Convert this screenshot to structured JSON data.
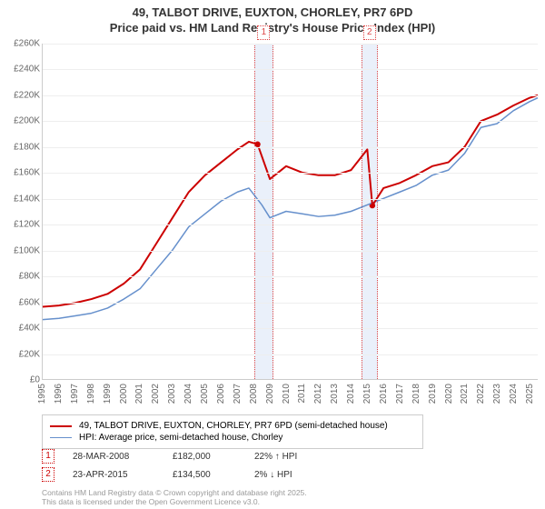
{
  "title_line1": "49, TALBOT DRIVE, EUXTON, CHORLEY, PR7 6PD",
  "title_line2": "Price paid vs. HM Land Registry's House Price Index (HPI)",
  "chart": {
    "type": "line",
    "x_domain": [
      1995,
      2025.5
    ],
    "y_domain": [
      0,
      260000
    ],
    "y_ticks": [
      0,
      20000,
      40000,
      60000,
      80000,
      100000,
      120000,
      140000,
      160000,
      180000,
      200000,
      220000,
      240000,
      260000
    ],
    "y_tick_labels": [
      "£0",
      "£20K",
      "£40K",
      "£60K",
      "£80K",
      "£100K",
      "£120K",
      "£140K",
      "£160K",
      "£180K",
      "£200K",
      "£220K",
      "£240K",
      "£260K"
    ],
    "x_ticks": [
      1995,
      1996,
      1997,
      1998,
      1999,
      2000,
      2001,
      2002,
      2003,
      2004,
      2005,
      2006,
      2007,
      2008,
      2009,
      2010,
      2011,
      2012,
      2013,
      2014,
      2015,
      2016,
      2017,
      2018,
      2019,
      2020,
      2021,
      2022,
      2023,
      2024,
      2025
    ],
    "background_color": "#ffffff",
    "grid_color": "#eeeeee",
    "axis_color": "#cccccc",
    "series_a": {
      "label": "49, TALBOT DRIVE, EUXTON, CHORLEY, PR7 6PD (semi-detached house)",
      "color": "#cc0000",
      "line_width": 2,
      "x": [
        1995,
        1996,
        1997,
        1998,
        1999,
        2000,
        2001,
        2002,
        2003,
        2004,
        2005,
        2006,
        2007,
        2007.7,
        2008.24,
        2009,
        2009.5,
        2010,
        2011,
        2012,
        2013,
        2014,
        2015,
        2015.31,
        2016,
        2017,
        2018,
        2019,
        2020,
        2021,
        2022,
        2023,
        2024,
        2025,
        2025.5
      ],
      "y": [
        56000,
        57000,
        59000,
        62000,
        66000,
        74000,
        85000,
        105000,
        125000,
        145000,
        158000,
        168000,
        178000,
        184000,
        182000,
        155000,
        160000,
        165000,
        160000,
        158000,
        158000,
        162000,
        178000,
        134500,
        148000,
        152000,
        158000,
        165000,
        168000,
        180000,
        200000,
        205000,
        212000,
        218000,
        220000
      ]
    },
    "series_b": {
      "label": "HPI: Average price, semi-detached house, Chorley",
      "color": "#6690cc",
      "line_width": 1.5,
      "x": [
        1995,
        1996,
        1997,
        1998,
        1999,
        2000,
        2001,
        2002,
        2003,
        2004,
        2005,
        2006,
        2007,
        2007.7,
        2008.5,
        2009,
        2010,
        2011,
        2012,
        2013,
        2014,
        2015,
        2016,
        2017,
        2018,
        2019,
        2020,
        2021,
        2022,
        2023,
        2024,
        2025,
        2025.5
      ],
      "y": [
        46000,
        47000,
        49000,
        51000,
        55000,
        62000,
        70000,
        85000,
        100000,
        118000,
        128000,
        138000,
        145000,
        148000,
        135000,
        125000,
        130000,
        128000,
        126000,
        127000,
        130000,
        135000,
        140000,
        145000,
        150000,
        158000,
        162000,
        175000,
        195000,
        198000,
        208000,
        215000,
        218000
      ]
    },
    "markers": [
      {
        "index": 1,
        "x": 2008.24,
        "y": 182000,
        "band_start": 2008.0,
        "band_end": 2009.2,
        "band_color": "#eaf0fa",
        "line_color": "#dd4444",
        "point_color": "#cc0000"
      },
      {
        "index": 2,
        "x": 2015.31,
        "y": 134500,
        "band_start": 2014.6,
        "band_end": 2015.6,
        "band_color": "#eaf0fa",
        "line_color": "#dd4444",
        "point_color": "#cc0000"
      }
    ],
    "title_fontsize": 13,
    "axis_fontsize": 10
  },
  "legend_items": [
    {
      "color": "#cc0000",
      "width": 2,
      "label": "49, TALBOT DRIVE, EUXTON, CHORLEY, PR7 6PD (semi-detached house)"
    },
    {
      "color": "#6690cc",
      "width": 1.5,
      "label": "HPI: Average price, semi-detached house, Chorley"
    }
  ],
  "sales": [
    {
      "marker": 1,
      "marker_color": "#cc0000",
      "date": "28-MAR-2008",
      "price": "£182,000",
      "delta": "22% ↑ HPI"
    },
    {
      "marker": 2,
      "marker_color": "#cc0000",
      "date": "23-APR-2015",
      "price": "£134,500",
      "delta": "2% ↓ HPI"
    }
  ],
  "footer_line1": "Contains HM Land Registry data © Crown copyright and database right 2025.",
  "footer_line2": "This data is licensed under the Open Government Licence v3.0."
}
